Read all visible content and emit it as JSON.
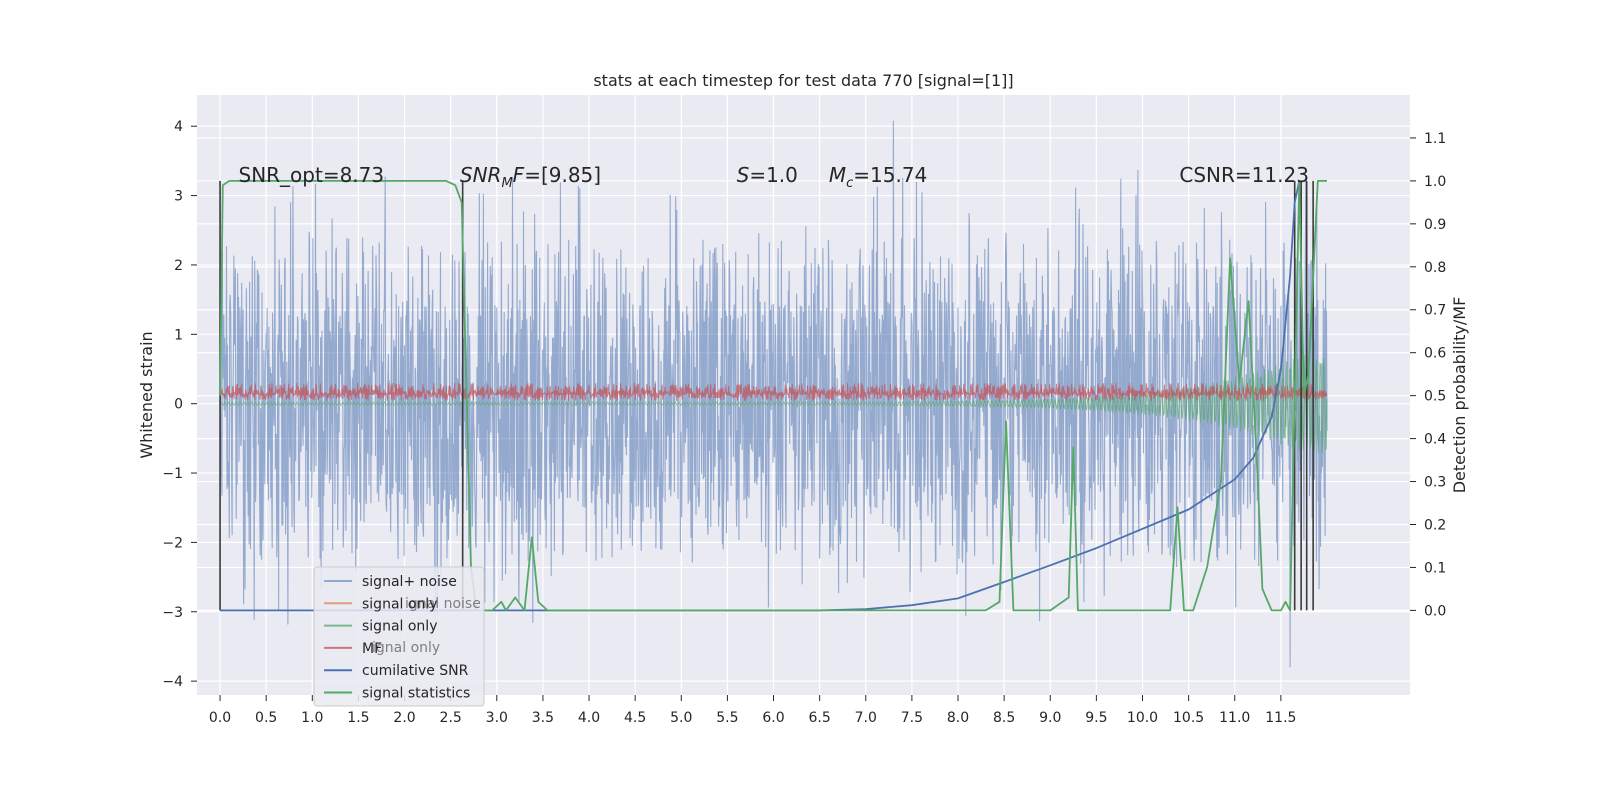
{
  "chart_data": {
    "type": "line",
    "title": "stats at each timestep for test data 770 [signal=[1]]",
    "ylabel": "Whitened strain",
    "y2label": "Detection probability/MF",
    "xlabel": "",
    "xlim": [
      -0.25,
      12.9
    ],
    "ylim": [
      -4.2,
      4.45
    ],
    "y2lim": [
      -0.197,
      1.2
    ],
    "x_ticks": [
      0.0,
      0.5,
      1.0,
      1.5,
      2.0,
      2.5,
      3.0,
      3.5,
      4.0,
      4.5,
      5.0,
      5.5,
      6.0,
      6.5,
      7.0,
      7.5,
      8.0,
      8.5,
      9.0,
      9.5,
      10.0,
      10.5,
      11.0,
      11.5
    ],
    "x_tick_labels": [
      "0.0",
      "0.5",
      "1.0",
      "1.5",
      "2.0",
      "2.5",
      "3.0",
      "3.5",
      "4.0",
      "4.5",
      "5.0",
      "5.5",
      "6.0",
      "6.5",
      "7.0",
      "7.5",
      "8.0",
      "8.5",
      "9.0",
      "9.5",
      "10.0",
      "10.5",
      "11.0",
      "11.5"
    ],
    "y_ticks": [
      -4,
      -3,
      -2,
      -1,
      0,
      1,
      2,
      3,
      4
    ],
    "y_tick_labels": [
      "−4",
      "−3",
      "−2",
      "−1",
      "0",
      "1",
      "2",
      "3",
      "4"
    ],
    "y2_ticks": [
      0.0,
      0.1,
      0.2,
      0.3,
      0.4,
      0.5,
      0.6,
      0.7,
      0.8,
      0.9,
      1.0,
      1.1
    ],
    "y2_tick_labels": [
      "0.0",
      "0.1",
      "0.2",
      "0.3",
      "0.4",
      "0.5",
      "0.6",
      "0.7",
      "0.8",
      "0.9",
      "1.0",
      "1.1"
    ],
    "grid": true,
    "legend_position": "lower-left",
    "colors": {
      "signal_noise": "#4c72b0",
      "signal_only_orange": "#dd8452",
      "signal_only_green": "#55a868",
      "mf": "#c44e52",
      "cumulative_snr": "#4c72b0",
      "signal_statistics": "#55a868",
      "background": "#eaeaf2"
    },
    "legend": [
      {
        "label": "signal+ noise",
        "color": "#4c72b0",
        "alpha": 0.55
      },
      {
        "label": "signal only",
        "color": "#dd8452",
        "alpha": 0.75
      },
      {
        "label": "signal only",
        "color": "#55a868",
        "alpha": 0.75
      },
      {
        "label": "MF",
        "color": "#c44e52",
        "alpha": 0.75
      },
      {
        "label": "cumilative SNR",
        "color": "#4c72b0",
        "alpha": 1.0
      },
      {
        "label": "signal statistics",
        "color": "#55a868",
        "alpha": 1.0
      }
    ],
    "legend_ghost_text": [
      "ignal noise",
      "ignal only"
    ],
    "annotations": [
      {
        "id": "snr-opt",
        "x": 0.2,
        "y2": 1.0,
        "text": "SNR_opt=8.73"
      },
      {
        "id": "snr-mf",
        "x": 2.6,
        "y2": 1.0,
        "text": "SNR_MF=[9.85]"
      },
      {
        "id": "s-val",
        "x": 5.6,
        "y2": 1.0,
        "text": "S=1.0"
      },
      {
        "id": "mc-val",
        "x": 6.6,
        "y2": 1.0,
        "text": "M_c=15.74"
      },
      {
        "id": "csnr",
        "x": 10.4,
        "y2": 1.0,
        "text": "CSNR=11.23"
      }
    ],
    "series": [
      {
        "name": "signal+ noise",
        "axis": "left",
        "style": "dense-noise",
        "x_range": [
          0.0,
          12.0
        ],
        "band": [
          -1.5,
          1.5
        ],
        "peak_max": 4.08,
        "peak_min": -3.8
      },
      {
        "name": "MF",
        "axis": "left",
        "style": "dense-noise",
        "x_range": [
          0.0,
          12.0
        ],
        "band": [
          0.0,
          0.32
        ]
      },
      {
        "name": "signal only",
        "axis": "left",
        "style": "chirp",
        "x_range": [
          0.0,
          12.0
        ],
        "amplitude_end": 0.7
      },
      {
        "name": "cumilative SNR",
        "axis": "right",
        "x": [
          0.0,
          6.5,
          7.0,
          7.5,
          8.0,
          8.5,
          9.0,
          9.5,
          10.0,
          10.5,
          11.0,
          11.2,
          11.4,
          11.5,
          11.6,
          11.65,
          11.7
        ],
        "y": [
          0.0,
          0.0,
          0.003,
          0.012,
          0.028,
          0.066,
          0.105,
          0.145,
          0.19,
          0.235,
          0.305,
          0.355,
          0.45,
          0.56,
          0.78,
          0.95,
          1.0
        ]
      },
      {
        "name": "signal statistics",
        "axis": "right",
        "x": [
          0.0,
          0.03,
          0.1,
          2.3,
          2.45,
          2.55,
          2.62,
          2.72,
          2.78,
          2.88,
          2.95,
          3.05,
          3.1,
          3.2,
          3.3,
          3.38,
          3.45,
          3.55,
          4.0,
          8.3,
          8.45,
          8.52,
          8.6,
          9.0,
          9.2,
          9.25,
          9.3,
          9.6,
          9.8,
          10.0,
          10.3,
          10.38,
          10.45,
          10.55,
          10.7,
          10.85,
          10.95,
          11.05,
          11.15,
          11.25,
          11.3,
          11.4,
          11.5,
          11.55,
          11.6,
          11.65,
          11.7,
          11.75,
          11.8,
          11.9,
          12.0
        ],
        "y": [
          0.5,
          0.99,
          1.0,
          1.0,
          1.0,
          0.99,
          0.95,
          0.1,
          0.0,
          0.0,
          0.0,
          0.02,
          0.0,
          0.03,
          0.0,
          0.17,
          0.02,
          0.0,
          0.0,
          0.0,
          0.02,
          0.44,
          0.0,
          0.0,
          0.03,
          0.38,
          0.0,
          0.0,
          0.0,
          0.0,
          0.0,
          0.24,
          0.0,
          0.0,
          0.1,
          0.3,
          0.82,
          0.53,
          0.72,
          0.3,
          0.05,
          0.0,
          0.0,
          0.02,
          0.0,
          0.5,
          1.0,
          0.5,
          0.55,
          1.0,
          1.0
        ]
      }
    ],
    "vertical_markers": [
      {
        "x": 0.0,
        "axis": "right",
        "y_range": [
          0.0,
          1.0
        ]
      },
      {
        "x": 2.63,
        "axis": "right",
        "y_range": [
          0.0,
          1.0
        ]
      },
      {
        "x": 11.65,
        "axis": "right",
        "y_range": [
          0.0,
          1.0
        ]
      },
      {
        "x": 11.72,
        "axis": "right",
        "y_range": [
          0.0,
          1.0
        ]
      },
      {
        "x": 11.78,
        "axis": "right",
        "y_range": [
          0.0,
          1.0
        ]
      },
      {
        "x": 11.85,
        "axis": "right",
        "y_range": [
          0.0,
          1.0
        ]
      }
    ]
  }
}
